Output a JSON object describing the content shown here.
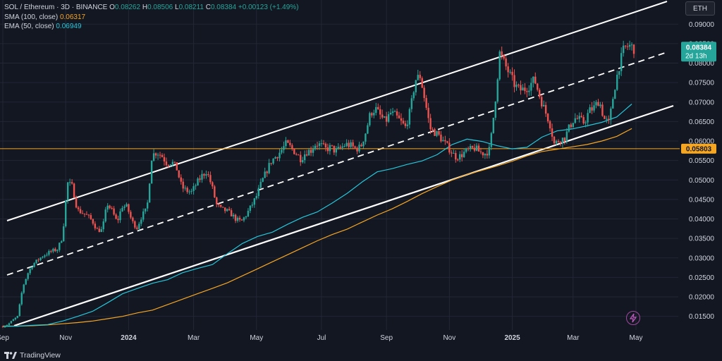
{
  "header": {
    "symbol": "SOL / Ethereum · 3D · BINANCE",
    "ohlc": [
      {
        "k": "O",
        "v": "0.08262"
      },
      {
        "k": "H",
        "v": "0.08506"
      },
      {
        "k": "L",
        "v": "0.08211"
      },
      {
        "k": "C",
        "v": "0.08384"
      }
    ],
    "change": "+0.00123 (+1.49%)",
    "sma_label": "SMA (100, close)",
    "sma_value": "0.06317",
    "ema_label": "EMA (50, close)",
    "ema_value": "0.06949"
  },
  "currency_button": "ETH",
  "brand": "TradingView",
  "chart_data": {
    "type": "candlestick",
    "title": "SOL / Ethereum · 3D · BINANCE",
    "ylim": [
      0.0115,
      0.0962
    ],
    "y_ticks": [
      "0.09000",
      "0.08500",
      "0.08000",
      "0.07500",
      "0.07000",
      "0.06500",
      "0.06000",
      "0.05500",
      "0.05000",
      "0.04500",
      "0.04000",
      "0.03500",
      "0.03000",
      "0.02500",
      "0.02000",
      "0.01500"
    ],
    "x_ticks": [
      "Sep",
      "Nov",
      "2024",
      "Mar",
      "May",
      "Jul",
      "Sep",
      "Nov",
      "2025",
      "Mar",
      "May"
    ],
    "x_tick_index": [
      0,
      30,
      60,
      91,
      121,
      152,
      183,
      213,
      243,
      272,
      302
    ],
    "n_bars": 302,
    "horizontal_line": {
      "value": 0.05803,
      "label": "0.05803",
      "color": "#f5a623"
    },
    "last_price": {
      "value": 0.08384,
      "label": "0.08384",
      "countdown": "2d 13h",
      "color": "#26a69a"
    },
    "closes": [
      0.0124,
      0.0129,
      0.014,
      0.015,
      0.0225,
      0.026,
      0.0283,
      0.0294,
      0.0305,
      0.0312,
      0.0318,
      0.0322,
      0.0354,
      0.0493,
      0.0483,
      0.0423,
      0.0416,
      0.0408,
      0.0395,
      0.0372,
      0.0371,
      0.044,
      0.042,
      0.0391,
      0.0433,
      0.0431,
      0.0393,
      0.0378,
      0.0409,
      0.0425,
      0.0563,
      0.0572,
      0.0562,
      0.0543,
      0.0547,
      0.0529,
      0.0482,
      0.0472,
      0.0469,
      0.0491,
      0.051,
      0.0523,
      0.0487,
      0.0437,
      0.0424,
      0.0421,
      0.0412,
      0.0398,
      0.0393,
      0.0411,
      0.0433,
      0.0457,
      0.0492,
      0.0521,
      0.0548,
      0.0561,
      0.0575,
      0.0593,
      0.0583,
      0.0569,
      0.0554,
      0.0572,
      0.0576,
      0.0594,
      0.0589,
      0.0579,
      0.0584,
      0.0573,
      0.0582,
      0.0592,
      0.0588,
      0.058,
      0.0584,
      0.0622,
      0.0672,
      0.0683,
      0.0664,
      0.0649,
      0.0672,
      0.0665,
      0.065,
      0.0635,
      0.0677,
      0.0757,
      0.0767,
      0.0701,
      0.0632,
      0.0622,
      0.061,
      0.0593,
      0.0578,
      0.056,
      0.0561,
      0.0572,
      0.0577,
      0.0582,
      0.0571,
      0.0568,
      0.0578,
      0.0691,
      0.0826,
      0.0797,
      0.0771,
      0.0744,
      0.0731,
      0.0733,
      0.0743,
      0.0758,
      0.0717,
      0.068,
      0.065,
      0.0591,
      0.0604,
      0.0606,
      0.0635,
      0.0659,
      0.0655,
      0.0647,
      0.0677,
      0.0686,
      0.0705,
      0.0657,
      0.0645,
      0.073,
      0.0791,
      0.0837,
      0.0845,
      0.0838
    ],
    "sma100": [
      0.0125,
      0.0125,
      0.0126,
      0.0128,
      0.0131,
      0.0134,
      0.0138,
      0.0144,
      0.015,
      0.0159,
      0.0166,
      0.018,
      0.0194,
      0.0208,
      0.0222,
      0.0236,
      0.0254,
      0.0272,
      0.029,
      0.0308,
      0.0326,
      0.0344,
      0.036,
      0.0374,
      0.0392,
      0.041,
      0.0426,
      0.0445,
      0.0465,
      0.0483,
      0.05,
      0.0514,
      0.0525,
      0.0536,
      0.0548,
      0.0562,
      0.0573,
      0.0579,
      0.0585,
      0.0591,
      0.06,
      0.0612,
      0.0632
    ],
    "ema50": [
      0.0124,
      0.0125,
      0.0127,
      0.0129,
      0.0138,
      0.015,
      0.0163,
      0.0185,
      0.0208,
      0.0222,
      0.0235,
      0.0244,
      0.0262,
      0.0273,
      0.0283,
      0.0311,
      0.0337,
      0.0355,
      0.0366,
      0.0386,
      0.0404,
      0.0418,
      0.0441,
      0.0466,
      0.0495,
      0.0521,
      0.0529,
      0.054,
      0.0549,
      0.0565,
      0.0591,
      0.0605,
      0.0599,
      0.0588,
      0.058,
      0.0584,
      0.061,
      0.0626,
      0.0631,
      0.0639,
      0.0648,
      0.0662,
      0.0695
    ]
  }
}
